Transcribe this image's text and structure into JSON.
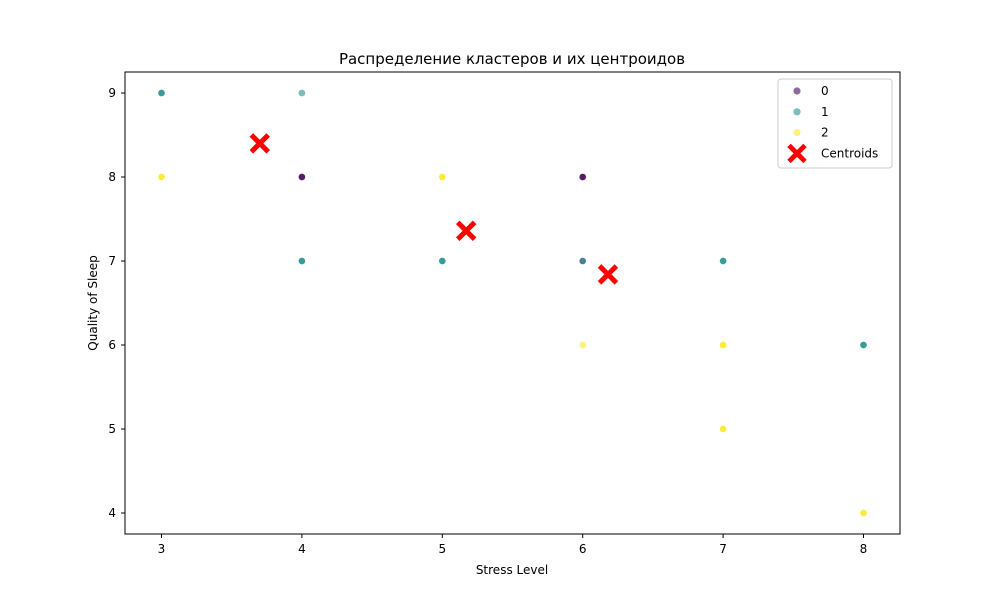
{
  "chart_data": {
    "type": "scatter",
    "title": "Распределение кластеров и их центроидов",
    "xlabel": "Stress Level",
    "ylabel": "Quality of Sleep",
    "xlim": [
      2.74,
      8.26
    ],
    "ylim": [
      3.75,
      9.25
    ],
    "xticks": [
      3,
      4,
      5,
      6,
      7,
      8
    ],
    "yticks": [
      4,
      5,
      6,
      7,
      8,
      9
    ],
    "grid": false,
    "legend_position": "top-right",
    "series": [
      {
        "name": "0",
        "color": "#440154",
        "opacity": 0.6,
        "points": [
          {
            "x": 4,
            "y": 8
          },
          {
            "x": 6,
            "y": 8
          },
          {
            "x": 6,
            "y": 7
          }
        ]
      },
      {
        "name": "1",
        "color": "#21918c",
        "opacity": 0.6,
        "points": [
          {
            "x": 3,
            "y": 9
          },
          {
            "x": 4,
            "y": 9
          },
          {
            "x": 4,
            "y": 7
          },
          {
            "x": 5,
            "y": 7
          },
          {
            "x": 6,
            "y": 7
          },
          {
            "x": 7,
            "y": 7
          },
          {
            "x": 8,
            "y": 6
          }
        ]
      },
      {
        "name": "2",
        "color": "#fde725",
        "opacity": 0.6,
        "points": [
          {
            "x": 3,
            "y": 8
          },
          {
            "x": 5,
            "y": 8
          },
          {
            "x": 6,
            "y": 6
          },
          {
            "x": 7,
            "y": 6
          },
          {
            "x": 7,
            "y": 5
          },
          {
            "x": 8,
            "y": 4
          }
        ]
      }
    ],
    "overplot_points": [
      {
        "x": 3,
        "y": 9,
        "color": "#21918c"
      },
      {
        "x": 4,
        "y": 8,
        "color": "#440154"
      },
      {
        "x": 4,
        "y": 7,
        "color": "#21918c"
      },
      {
        "x": 5,
        "y": 7,
        "color": "#21918c"
      },
      {
        "x": 6,
        "y": 8,
        "color": "#440154"
      },
      {
        "x": 7,
        "y": 7,
        "color": "#21918c"
      },
      {
        "x": 8,
        "y": 6,
        "color": "#21918c"
      },
      {
        "x": 3,
        "y": 8,
        "color": "#fde725"
      },
      {
        "x": 5,
        "y": 8,
        "color": "#fde725"
      },
      {
        "x": 7,
        "y": 6,
        "color": "#fde725"
      },
      {
        "x": 7,
        "y": 5,
        "color": "#fde725"
      },
      {
        "x": 8,
        "y": 4,
        "color": "#fde725"
      }
    ],
    "centroids": {
      "name": "Centroids",
      "color": "#ff0000",
      "marker": "X",
      "points": [
        {
          "x": 3.7,
          "y": 8.4
        },
        {
          "x": 5.17,
          "y": 7.36
        },
        {
          "x": 6.18,
          "y": 6.84
        }
      ]
    }
  }
}
